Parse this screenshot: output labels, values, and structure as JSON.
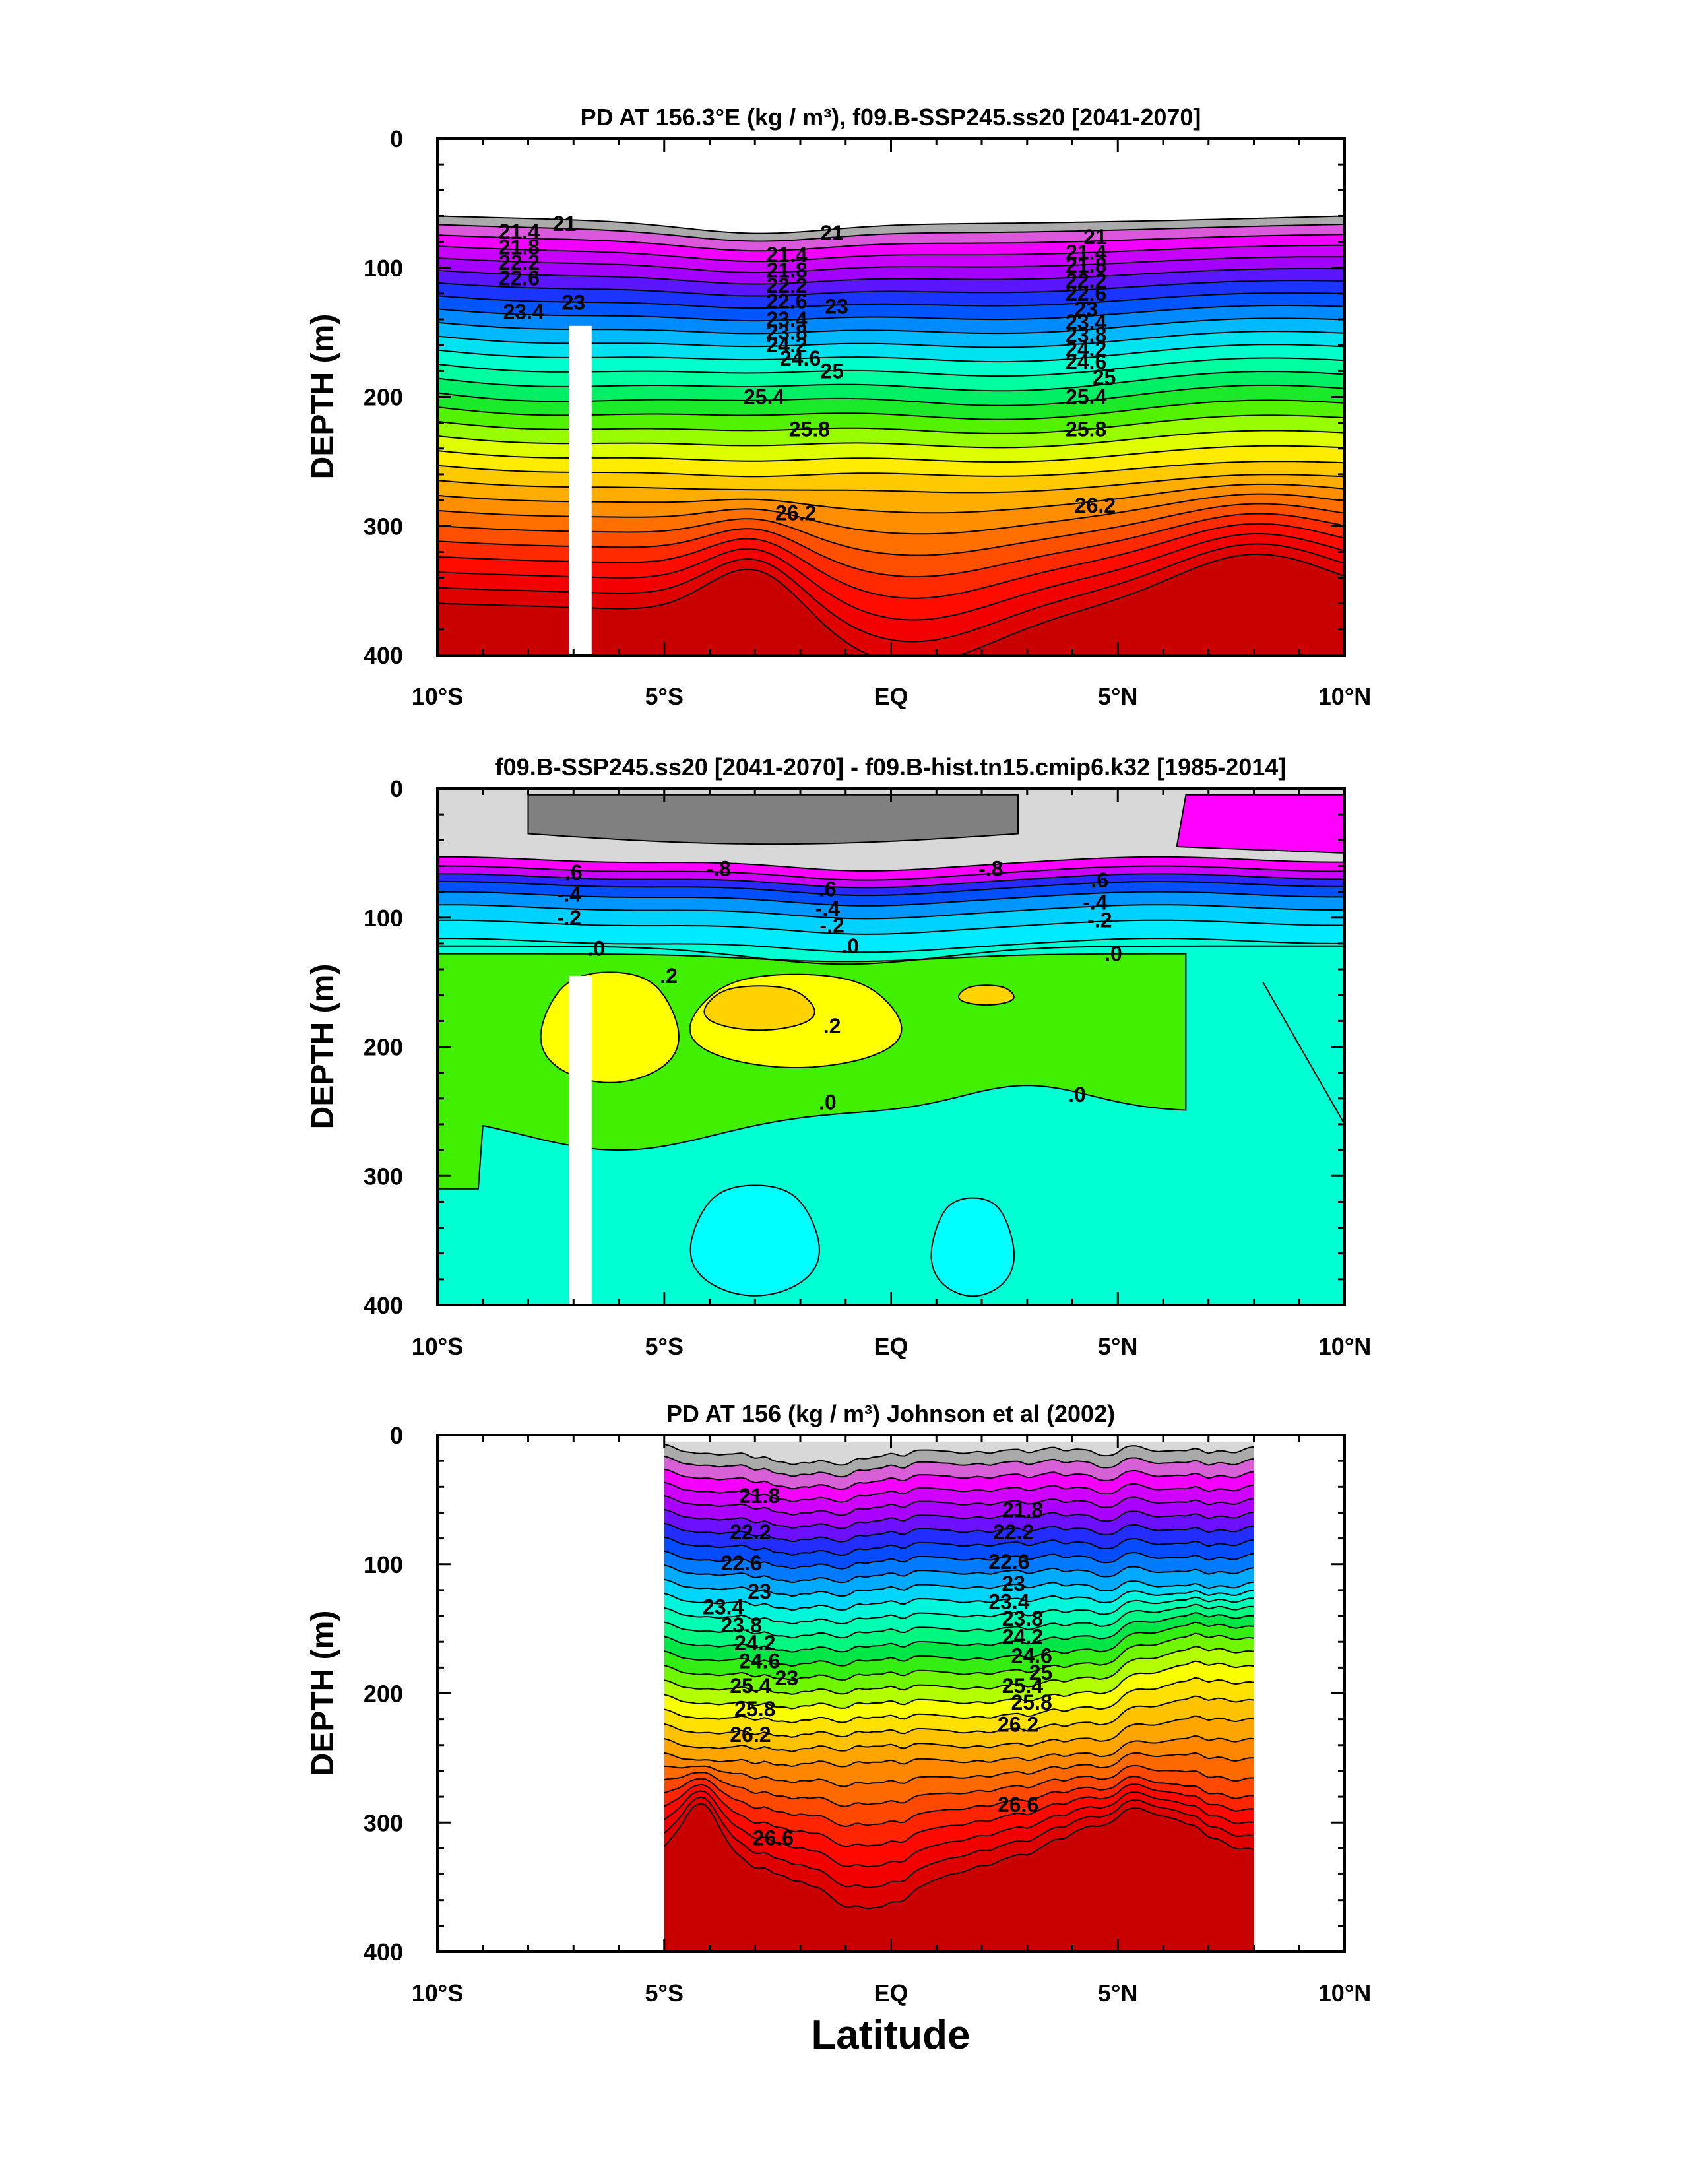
{
  "chart_data": [
    {
      "type": "heatmap",
      "title": "PD AT 156.3°E (kg / m³), f09.B-SSP245.ss20 [2041-2070]",
      "ylabel": "DEPTH (m)",
      "xlim": [
        -10,
        10
      ],
      "ylim": [
        0,
        400
      ],
      "yreversed": true,
      "x_ticks": [
        -10,
        -5,
        0,
        5,
        10
      ],
      "x_tick_labels": [
        "10°S",
        "5°S",
        "EQ",
        "5°N",
        "10°N"
      ],
      "y_ticks": [
        0,
        100,
        200,
        300,
        400
      ],
      "y_tick_labels": [
        "0",
        "100",
        "200",
        "300",
        "400"
      ],
      "contour_levels": [
        21,
        21.2,
        21.4,
        21.6,
        21.8,
        22,
        22.2,
        22.4,
        22.6,
        22.8,
        23,
        23.2,
        23.4,
        23.6,
        23.8,
        24,
        24.2,
        24.4,
        24.6,
        24.8,
        25,
        25.2,
        25.4,
        25.6,
        25.8,
        26,
        26.2,
        26.4,
        26.6
      ],
      "missing_band": {
        "x": [
          -7.1,
          -6.6
        ],
        "depth": [
          145,
          400
        ]
      },
      "contour_labels": [
        {
          "text": "21",
          "x": -7.2,
          "depth": 66
        },
        {
          "text": "21.4",
          "x": -8.2,
          "depth": 72
        },
        {
          "text": "21.8",
          "x": -8.2,
          "depth": 84
        },
        {
          "text": "22.2",
          "x": -8.2,
          "depth": 96
        },
        {
          "text": "22.6",
          "x": -8.2,
          "depth": 108
        },
        {
          "text": "23",
          "x": -7.0,
          "depth": 127
        },
        {
          "text": "23.4",
          "x": -8.1,
          "depth": 134
        },
        {
          "text": "21",
          "x": -1.3,
          "depth": 73
        },
        {
          "text": "21.4",
          "x": -2.3,
          "depth": 90
        },
        {
          "text": "21.8",
          "x": -2.3,
          "depth": 102
        },
        {
          "text": "22.2",
          "x": -2.3,
          "depth": 114
        },
        {
          "text": "22.6",
          "x": -2.3,
          "depth": 126
        },
        {
          "text": "23",
          "x": -1.2,
          "depth": 130
        },
        {
          "text": "23.4",
          "x": -2.3,
          "depth": 140
        },
        {
          "text": "23.8",
          "x": -2.3,
          "depth": 150
        },
        {
          "text": "24.2",
          "x": -2.3,
          "depth": 160
        },
        {
          "text": "24.6",
          "x": -2.0,
          "depth": 170
        },
        {
          "text": "25",
          "x": -1.3,
          "depth": 180
        },
        {
          "text": "25.4",
          "x": -2.8,
          "depth": 200
        },
        {
          "text": "25.8",
          "x": -1.8,
          "depth": 225
        },
        {
          "text": "26.2",
          "x": -2.1,
          "depth": 290
        },
        {
          "text": "21",
          "x": 4.5,
          "depth": 76
        },
        {
          "text": "21.4",
          "x": 4.3,
          "depth": 88
        },
        {
          "text": "21.8",
          "x": 4.3,
          "depth": 98
        },
        {
          "text": "22.2",
          "x": 4.3,
          "depth": 110
        },
        {
          "text": "22.6",
          "x": 4.3,
          "depth": 120
        },
        {
          "text": "23",
          "x": 4.3,
          "depth": 132
        },
        {
          "text": "23.4",
          "x": 4.3,
          "depth": 142
        },
        {
          "text": "23.8",
          "x": 4.3,
          "depth": 152
        },
        {
          "text": "24.2",
          "x": 4.3,
          "depth": 163
        },
        {
          "text": "24.6",
          "x": 4.3,
          "depth": 173
        },
        {
          "text": "25",
          "x": 4.7,
          "depth": 185
        },
        {
          "text": "25.4",
          "x": 4.3,
          "depth": 200
        },
        {
          "text": "25.8",
          "x": 4.3,
          "depth": 225
        },
        {
          "text": "26.2",
          "x": 4.5,
          "depth": 284
        }
      ]
    },
    {
      "type": "heatmap",
      "title": "f09.B-SSP245.ss20 [2041-2070] - f09.B-hist.tn15.cmip6.k32 [1985-2014]",
      "ylabel": "DEPTH (m)",
      "xlim": [
        -10,
        10
      ],
      "ylim": [
        0,
        400
      ],
      "yreversed": true,
      "x_ticks": [
        -10,
        -5,
        0,
        5,
        10
      ],
      "x_tick_labels": [
        "10°S",
        "5°S",
        "EQ",
        "5°N",
        "10°N"
      ],
      "y_ticks": [
        0,
        100,
        200,
        300,
        400
      ],
      "y_tick_labels": [
        "0",
        "100",
        "200",
        "300",
        "400"
      ],
      "contour_levels": [
        -1.0,
        -0.8,
        -0.6,
        -0.4,
        -0.2,
        0.0,
        0.2,
        0.4
      ],
      "missing_band": {
        "x": [
          -7.1,
          -6.6
        ],
        "depth": [
          145,
          400
        ]
      },
      "contour_labels": [
        {
          "text": ".6",
          "x": -7.0,
          "depth": 65
        },
        {
          "text": "-.4",
          "x": -7.1,
          "depth": 82
        },
        {
          "text": "-.2",
          "x": -7.1,
          "depth": 100
        },
        {
          "text": ".0",
          "x": -6.5,
          "depth": 124
        },
        {
          "text": "-.8",
          "x": -3.8,
          "depth": 62
        },
        {
          "text": ".6",
          "x": -1.4,
          "depth": 78
        },
        {
          "text": "-.4",
          "x": -1.4,
          "depth": 93
        },
        {
          "text": "-.2",
          "x": -1.3,
          "depth": 106
        },
        {
          "text": ".0",
          "x": -0.9,
          "depth": 122
        },
        {
          "text": ".2",
          "x": -4.9,
          "depth": 145
        },
        {
          "text": ".2",
          "x": -1.3,
          "depth": 184
        },
        {
          "text": ".0",
          "x": -1.4,
          "depth": 243
        },
        {
          "text": "-.8",
          "x": 2.2,
          "depth": 62
        },
        {
          "text": ".6",
          "x": 4.6,
          "depth": 71
        },
        {
          "text": "-.4",
          "x": 4.5,
          "depth": 88
        },
        {
          "text": "-.2",
          "x": 4.6,
          "depth": 102
        },
        {
          "text": ".0",
          "x": 4.9,
          "depth": 128
        },
        {
          "text": ".0",
          "x": 4.1,
          "depth": 237
        }
      ]
    },
    {
      "type": "heatmap",
      "title": "PD AT 156 (kg / m³) Johnson et al (2002)",
      "ylabel": "DEPTH (m)",
      "xlabel": "Latitude",
      "xlim": [
        -10,
        10
      ],
      "ylim": [
        0,
        400
      ],
      "yreversed": true,
      "data_x_range": [
        -5,
        8
      ],
      "x_ticks": [
        -10,
        -5,
        0,
        5,
        10
      ],
      "x_tick_labels": [
        "10°S",
        "5°S",
        "EQ",
        "5°N",
        "10°N"
      ],
      "y_ticks": [
        0,
        100,
        200,
        300,
        400
      ],
      "y_tick_labels": [
        "0",
        "100",
        "200",
        "300",
        "400"
      ],
      "contour_levels": [
        21,
        21.2,
        21.4,
        21.6,
        21.8,
        22,
        22.2,
        22.4,
        22.6,
        22.8,
        23,
        23.2,
        23.4,
        23.6,
        23.8,
        24,
        24.2,
        24.4,
        24.6,
        24.8,
        25,
        25.2,
        25.4,
        25.6,
        25.8,
        26,
        26.2,
        26.4,
        26.6,
        26.8
      ],
      "contour_labels": [
        {
          "text": "21.8",
          "x": -2.9,
          "depth": 47
        },
        {
          "text": "22.2",
          "x": -3.1,
          "depth": 75
        },
        {
          "text": "22.6",
          "x": -3.3,
          "depth": 99
        },
        {
          "text": "23",
          "x": -2.9,
          "depth": 121
        },
        {
          "text": "23.4",
          "x": -3.7,
          "depth": 133
        },
        {
          "text": "23.8",
          "x": -3.3,
          "depth": 147
        },
        {
          "text": "24.2",
          "x": -3.0,
          "depth": 161
        },
        {
          "text": "24.6",
          "x": -2.9,
          "depth": 175
        },
        {
          "text": "23",
          "x": -2.3,
          "depth": 188
        },
        {
          "text": "25.4",
          "x": -3.1,
          "depth": 194
        },
        {
          "text": "25.8",
          "x": -3.0,
          "depth": 212
        },
        {
          "text": "26.2",
          "x": -3.1,
          "depth": 232
        },
        {
          "text": "26.6",
          "x": -2.6,
          "depth": 312
        },
        {
          "text": "21.8",
          "x": 2.9,
          "depth": 58
        },
        {
          "text": "22.2",
          "x": 2.7,
          "depth": 75
        },
        {
          "text": "22.6",
          "x": 2.6,
          "depth": 98
        },
        {
          "text": "23",
          "x": 2.7,
          "depth": 115
        },
        {
          "text": "23.4",
          "x": 2.6,
          "depth": 129
        },
        {
          "text": "23.8",
          "x": 2.9,
          "depth": 142
        },
        {
          "text": "24.2",
          "x": 2.9,
          "depth": 156
        },
        {
          "text": "24.6",
          "x": 3.1,
          "depth": 171
        },
        {
          "text": "25",
          "x": 3.3,
          "depth": 184
        },
        {
          "text": "25.4",
          "x": 2.9,
          "depth": 194
        },
        {
          "text": "25.8",
          "x": 3.1,
          "depth": 207
        },
        {
          "text": "26.2",
          "x": 2.8,
          "depth": 224
        },
        {
          "text": "26.6",
          "x": 2.8,
          "depth": 286
        }
      ]
    }
  ]
}
